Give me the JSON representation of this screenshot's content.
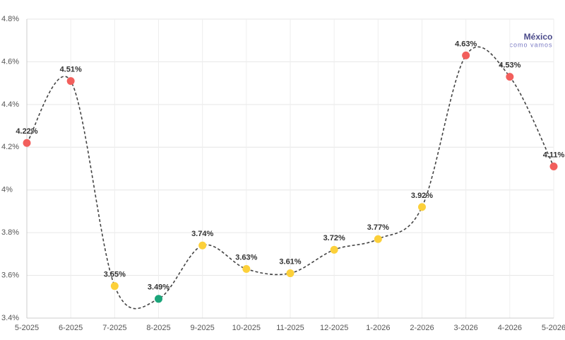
{
  "chart_data": {
    "type": "line",
    "categories": [
      "5-2025",
      "6-2025",
      "7-2025",
      "8-2025",
      "9-2025",
      "10-2025",
      "11-2025",
      "12-2025",
      "1-2026",
      "2-2026",
      "3-2026",
      "4-2026",
      "5-2026"
    ],
    "series": [
      {
        "color": "#444444",
        "values": [
          4.22,
          4.51,
          3.55,
          3.49,
          3.74,
          3.63,
          3.61,
          3.72,
          3.77,
          3.92,
          4.63,
          4.53,
          4.11
        ],
        "value_labels": [
          "4.22%",
          "4.51%",
          "3.55%",
          "3.49%",
          "3.74%",
          "3.63%",
          "3.61%",
          "3.72%",
          "3.77%",
          "3.92%",
          "4.63%",
          "4.53%",
          "4.11%"
        ],
        "point_colors": [
          "#f25f5c",
          "#f25f5c",
          "#fcd03a",
          "#1ba57a",
          "#fcd03a",
          "#fcd03a",
          "#fcd03a",
          "#fcd03a",
          "#fcd03a",
          "#fcd03a",
          "#f25f5c",
          "#f25f5c",
          "#f25f5c"
        ]
      }
    ],
    "ylim": [
      3.4,
      4.8
    ],
    "yticks": [
      {
        "value": 3.4,
        "label": "3.4%"
      },
      {
        "value": 3.6,
        "label": "3.6%"
      },
      {
        "value": 3.8,
        "label": "3.8%"
      },
      {
        "value": 4,
        "label": "4%"
      },
      {
        "value": 4.2,
        "label": "4.2%"
      },
      {
        "value": 4.4,
        "label": "4.4%"
      },
      {
        "value": 4.6,
        "label": "4.6%"
      },
      {
        "value": 4.8,
        "label": "4.8%"
      }
    ],
    "grid": true,
    "logo": {
      "name": "México",
      "tagline": "como vamos"
    }
  }
}
